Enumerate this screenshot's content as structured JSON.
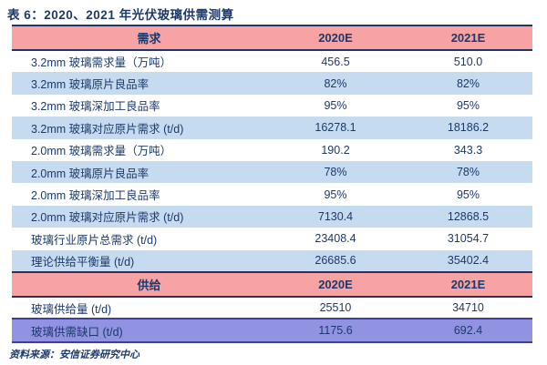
{
  "title": "表 6：2020、2021 年光伏玻璃供需测算",
  "source": "资料来源：安信证券研究中心",
  "colors": {
    "header_bg": "#F7A3A3",
    "shade_bg": "#C7DBF0",
    "highlight_bg": "#9192E1",
    "text_navy": "#1B3A6B",
    "line_navy": "#27335F",
    "highlight_border": "#3F3F97"
  },
  "table": {
    "columns": [
      "",
      "2020E",
      "2021E"
    ],
    "rows": [
      {
        "type": "header",
        "shade": false,
        "label": "需求",
        "c1": "2020E",
        "c2": "2021E"
      },
      {
        "type": "data",
        "shade": false,
        "label": "3.2mm 玻璃需求量（万吨）",
        "c1": "456.5",
        "c2": "510.0"
      },
      {
        "type": "data",
        "shade": true,
        "label": "3.2mm 玻璃原片良品率",
        "c1": "82%",
        "c2": "82%"
      },
      {
        "type": "data",
        "shade": false,
        "label": "3.2mm 玻璃深加工良品率",
        "c1": "95%",
        "c2": "95%"
      },
      {
        "type": "data",
        "shade": true,
        "label": "3.2mm 玻璃对应原片需求 (t/d)",
        "c1": "16278.1",
        "c2": "18186.2"
      },
      {
        "type": "data",
        "shade": false,
        "label": "2.0mm 玻璃需求量（万吨）",
        "c1": "190.2",
        "c2": "343.3"
      },
      {
        "type": "data",
        "shade": true,
        "label": "2.0mm 玻璃原片良品率",
        "c1": "78%",
        "c2": "78%"
      },
      {
        "type": "data",
        "shade": false,
        "label": "2.0mm 玻璃深加工良品率",
        "c1": "95%",
        "c2": "95%"
      },
      {
        "type": "data",
        "shade": true,
        "label": "2.0mm 玻璃对应原片需求 (t/d)",
        "c1": "7130.4",
        "c2": "12868.5"
      },
      {
        "type": "data",
        "shade": false,
        "label": "玻璃行业原片总需求 (t/d)",
        "c1": "23408.4",
        "c2": "31054.7"
      },
      {
        "type": "data",
        "shade": true,
        "label": "理论供给平衡量 (t/d)",
        "c1": "26685.6",
        "c2": "35402.4"
      },
      {
        "type": "header",
        "shade": false,
        "label": "供给",
        "c1": "2020E",
        "c2": "2021E"
      },
      {
        "type": "data",
        "shade": false,
        "label": "玻璃供给量 (t/d)",
        "c1": "25510",
        "c2": "34710"
      },
      {
        "type": "highlight",
        "shade": false,
        "label": "玻璃供需缺口 (t/d)",
        "c1": "1175.6",
        "c2": "692.4"
      }
    ]
  }
}
